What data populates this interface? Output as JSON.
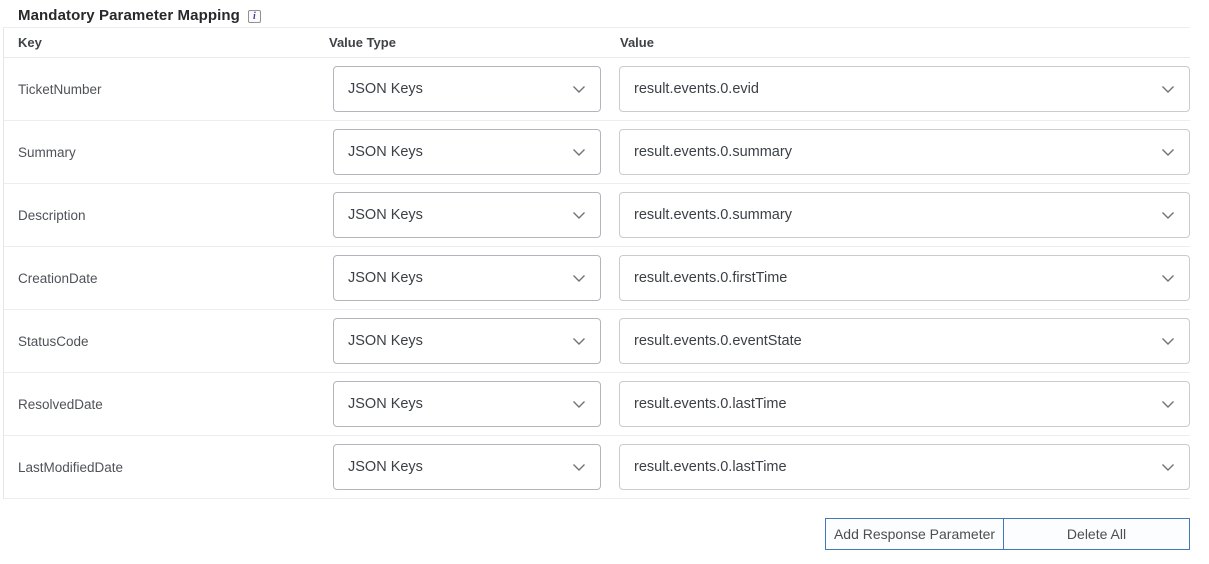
{
  "header": {
    "title": "Mandatory Parameter Mapping",
    "info_icon": "i"
  },
  "table": {
    "columns": {
      "key": "Key",
      "value_type": "Value Type",
      "value": "Value"
    },
    "rows": [
      {
        "key": "TicketNumber",
        "value_type": "JSON Keys",
        "value": "result.events.0.evid"
      },
      {
        "key": "Summary",
        "value_type": "JSON Keys",
        "value": "result.events.0.summary"
      },
      {
        "key": "Description",
        "value_type": "JSON Keys",
        "value": "result.events.0.summary"
      },
      {
        "key": "CreationDate",
        "value_type": "JSON Keys",
        "value": "result.events.0.firstTime"
      },
      {
        "key": "StatusCode",
        "value_type": "JSON Keys",
        "value": "result.events.0.eventState"
      },
      {
        "key": "ResolvedDate",
        "value_type": "JSON Keys",
        "value": "result.events.0.lastTime"
      },
      {
        "key": "LastModifiedDate",
        "value_type": "JSON Keys",
        "value": "result.events.0.lastTime"
      }
    ]
  },
  "footer": {
    "add_response_parameter_label": "Add Response Parameter",
    "delete_all_label": "Delete All"
  },
  "colors": {
    "accent_blue": "#4377b9",
    "separator": "#ecedef",
    "dropdown_border": "#c9ccd1",
    "text_dark": "#3c4045",
    "text_gray": "#4f5257"
  }
}
